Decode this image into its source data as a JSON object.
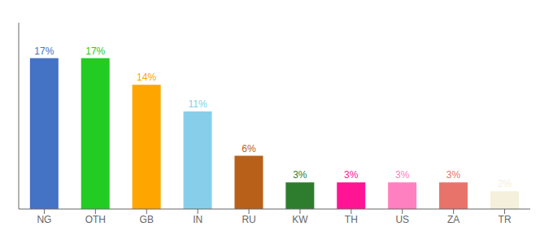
{
  "chart_data": {
    "type": "bar",
    "categories": [
      "NG",
      "OTH",
      "GB",
      "IN",
      "RU",
      "KW",
      "TH",
      "US",
      "ZA",
      "TR"
    ],
    "values": [
      17,
      17,
      14,
      11,
      6,
      3,
      3,
      3,
      3,
      2
    ],
    "value_labels": [
      "17%",
      "17%",
      "14%",
      "11%",
      "6%",
      "3%",
      "3%",
      "3%",
      "3%",
      "2%"
    ],
    "colors": [
      "#4472c4",
      "#22cc22",
      "#ffa500",
      "#87ceeb",
      "#b8601a",
      "#2e7d2e",
      "#ff1493",
      "#ff80c0",
      "#e8736a",
      "#f5f0dc"
    ],
    "ylim": [
      0,
      21
    ],
    "data_labels": true,
    "tick_labels": "x",
    "grid": false
  }
}
